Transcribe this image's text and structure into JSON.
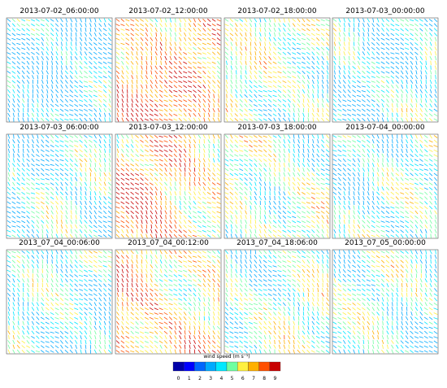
{
  "panels": [
    {
      "title": "2013-07-02_06:00:00"
    },
    {
      "title": "2013-07-02_12:00:00"
    },
    {
      "title": "2013-07-02_18:00:00"
    },
    {
      "title": "2013-07-03_00:00:00"
    },
    {
      "title": "2013-07-03_06:00:00"
    },
    {
      "title": "2013-07-03_12:00:00"
    },
    {
      "title": "2013-07-03_18:00:00"
    },
    {
      "title": "2013-07-04_00:00:00"
    },
    {
      "title": "2013_07_04_00:06:00"
    },
    {
      "title": "2013_07_04_00:12:00"
    },
    {
      "title": "2013_07_04_18:06:00"
    },
    {
      "title": "2013_07_05_00:00:00"
    }
  ],
  "colorbar": {
    "label": "wind speed (m s⁻¹)",
    "ticks": [
      "0",
      "1",
      "2",
      "3",
      "4",
      "5",
      "6",
      "7",
      "8",
      "9"
    ],
    "colors": [
      "#0000a8",
      "#0000ff",
      "#0066ff",
      "#00aaff",
      "#00e8ff",
      "#70ffa0",
      "#fff040",
      "#ffb000",
      "#ff5000",
      "#c80000"
    ]
  }
}
